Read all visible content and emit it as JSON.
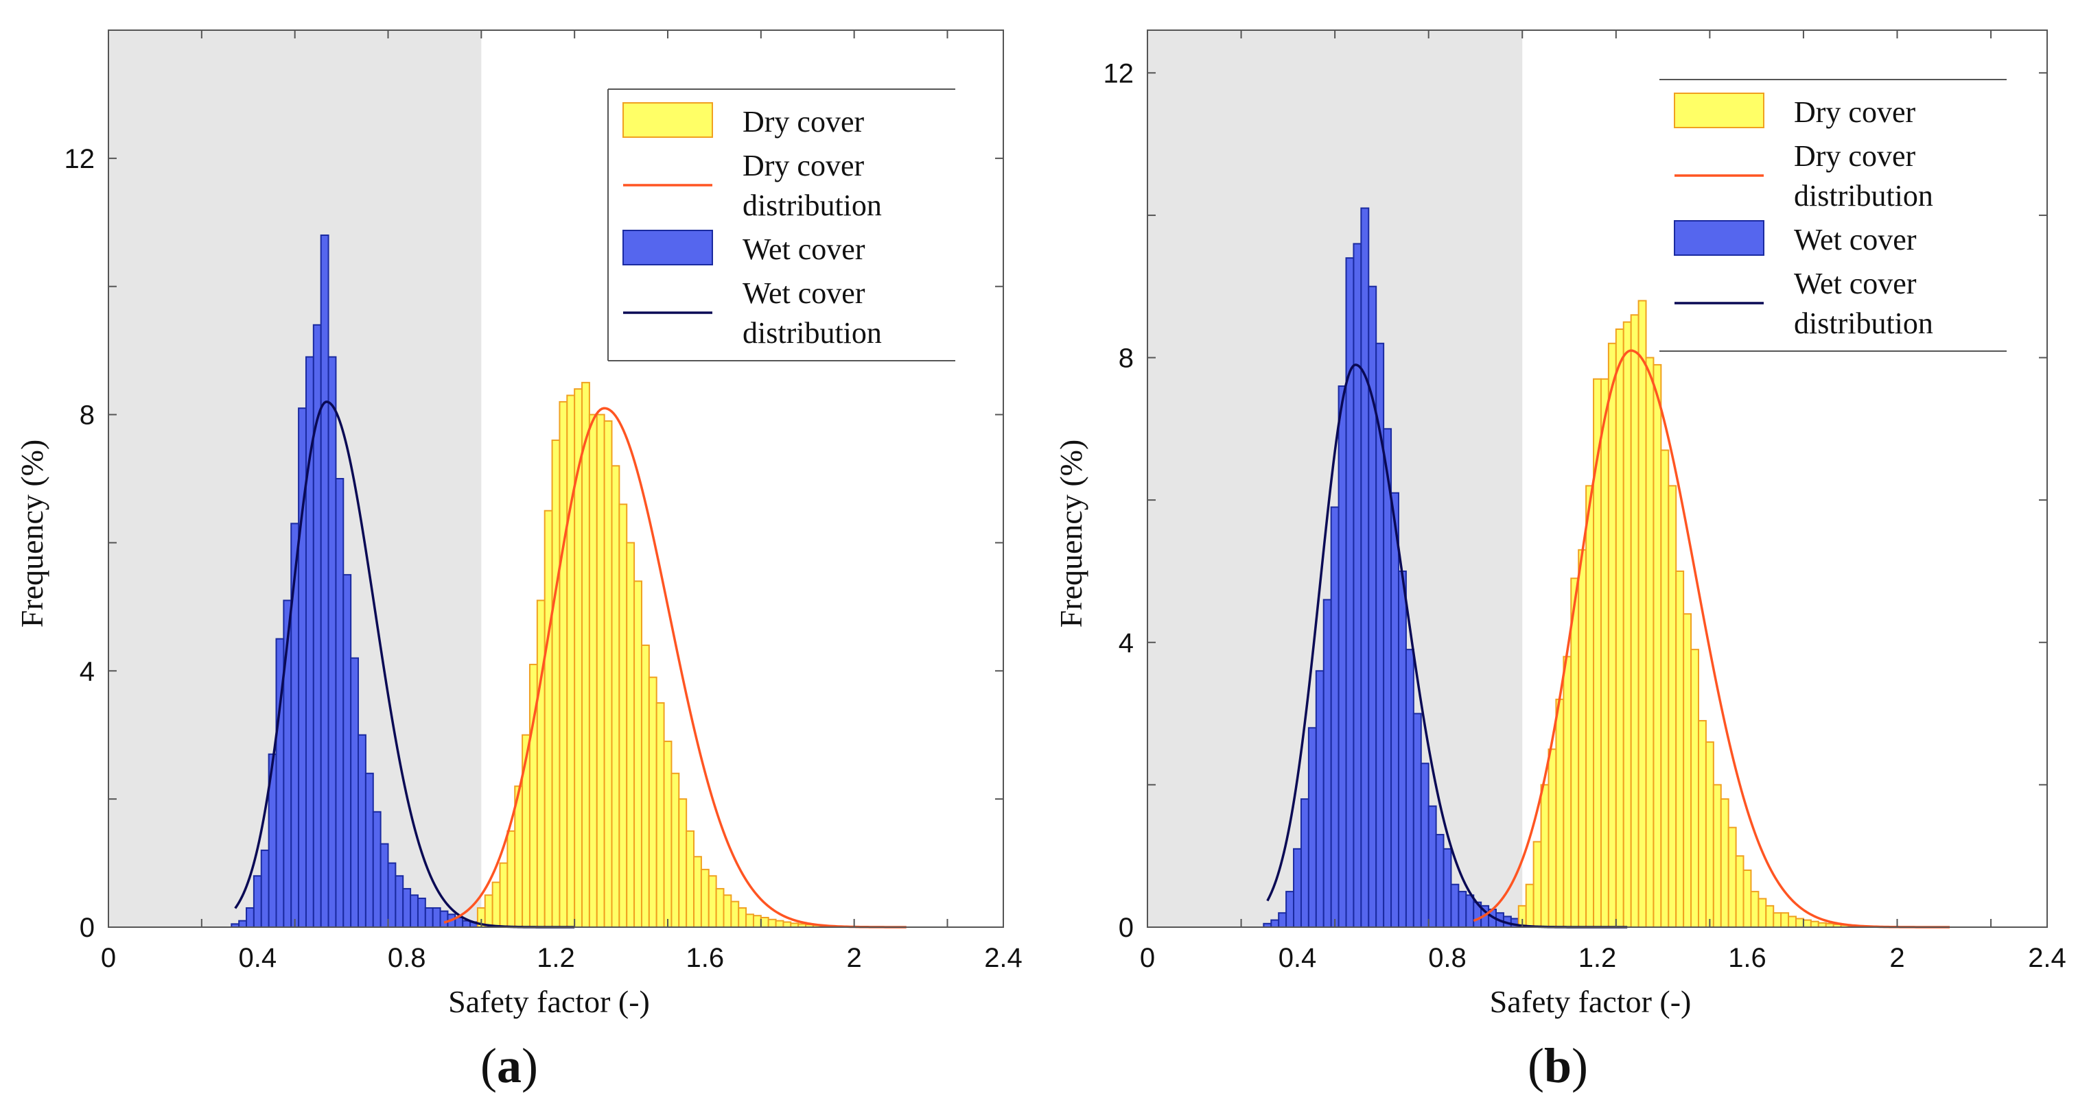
{
  "figure": {
    "background": "#ffffff"
  },
  "colors": {
    "dry_fill": "#ffff66",
    "dry_edge": "#f0a020",
    "dry_curve": "#ff5522",
    "wet_fill": "#5566ee",
    "wet_edge": "#1a2aa0",
    "wet_curve": "#0a0a55",
    "shade": "#e6e6e6"
  },
  "chart_data": [
    {
      "type": "bar",
      "panel": "(a)",
      "panel_parts": [
        "(",
        "a",
        ")"
      ],
      "xlabel": "Safety factor (-)",
      "ylabel": "Frequency (%)",
      "xlim": [
        0,
        2.4
      ],
      "ylim": [
        0,
        14
      ],
      "xticks": [
        0,
        0.4,
        0.8,
        1.2,
        1.6,
        2,
        2.4
      ],
      "xtick_labels": [
        "0",
        "0.4",
        "0.8",
        "1.2",
        "1.6",
        "2",
        "2.4"
      ],
      "yticks": [
        0,
        4,
        8,
        12
      ],
      "ytick_labels": [
        "0",
        "4",
        "8",
        "12"
      ],
      "minor_xticks": [
        0.25,
        0.5,
        0.75,
        1.0,
        1.25,
        1.5,
        1.75,
        2.0,
        2.25
      ],
      "minor_yticks": [
        0,
        2,
        4,
        6,
        8,
        10,
        12,
        14
      ],
      "shaded_region": [
        0,
        1.0
      ],
      "legend_position": "top-right",
      "legend": [
        {
          "kind": "patch",
          "series": "dry",
          "lines": [
            "Dry cover"
          ]
        },
        {
          "kind": "line",
          "series": "dry",
          "lines": [
            "Dry cover",
            "distribution"
          ]
        },
        {
          "kind": "patch",
          "series": "wet",
          "lines": [
            "Wet cover"
          ]
        },
        {
          "kind": "line",
          "series": "wet",
          "lines": [
            "Wet cover",
            "distribution"
          ]
        }
      ],
      "series": [
        {
          "name": "Wet cover",
          "key": "wet",
          "bin_width": 0.02,
          "bins_x_start": 0.33,
          "values": [
            0.05,
            0.1,
            0.3,
            0.8,
            1.2,
            2.7,
            4.5,
            5.1,
            6.3,
            8.1,
            8.9,
            9.4,
            10.8,
            8.9,
            7.0,
            5.5,
            4.2,
            3.0,
            2.4,
            1.8,
            1.3,
            1.0,
            0.8,
            0.6,
            0.5,
            0.45,
            0.3,
            0.3,
            0.25,
            0.2,
            0.15,
            0.1,
            0.08,
            0.07,
            0.06,
            0.05,
            0.04,
            0.03,
            0.03,
            0.02,
            0.02,
            0.02,
            0.01,
            0.01,
            0.01,
            0.01
          ]
        },
        {
          "name": "Dry cover",
          "key": "dry",
          "bin_width": 0.02,
          "bins_x_start": 0.99,
          "values": [
            0.3,
            0.5,
            0.7,
            1.0,
            1.5,
            2.2,
            3.0,
            4.1,
            5.1,
            6.5,
            7.6,
            8.2,
            8.3,
            8.4,
            8.5,
            8.0,
            8.0,
            7.9,
            7.2,
            6.6,
            6.0,
            5.4,
            4.4,
            3.9,
            3.5,
            2.9,
            2.4,
            2.0,
            1.5,
            1.1,
            0.9,
            0.8,
            0.6,
            0.5,
            0.4,
            0.3,
            0.2,
            0.18,
            0.15,
            0.12,
            0.1,
            0.08,
            0.06,
            0.05,
            0.04,
            0.03,
            0.02,
            0.02,
            0.01,
            0.01
          ]
        }
      ],
      "curves": [
        {
          "name": "Wet cover distribution",
          "key": "wet",
          "mean": 0.585,
          "peak": 8.2,
          "x_range": [
            0.34,
            1.25
          ],
          "skew": 0.12
        },
        {
          "name": "Dry cover distribution",
          "key": "dry",
          "mean": 1.33,
          "peak": 8.1,
          "x_range": [
            0.9,
            2.14
          ],
          "skew": 0.08
        }
      ]
    },
    {
      "type": "bar",
      "panel": "(b)",
      "panel_parts": [
        "(",
        "b",
        ")"
      ],
      "xlabel": "Safety factor (-)",
      "ylabel": "Frequency (%)",
      "xlim": [
        0,
        2.4
      ],
      "ylim": [
        0,
        12.6
      ],
      "xticks": [
        0,
        0.4,
        0.8,
        1.2,
        1.6,
        2,
        2.4
      ],
      "xtick_labels": [
        "0",
        "0.4",
        "0.8",
        "1.2",
        "1.6",
        "2",
        "2.4"
      ],
      "yticks": [
        0,
        4,
        8,
        12
      ],
      "ytick_labels": [
        "0",
        "4",
        "8",
        "12"
      ],
      "minor_xticks": [
        0.25,
        0.5,
        0.75,
        1.0,
        1.25,
        1.5,
        1.75,
        2.0,
        2.25
      ],
      "minor_yticks": [
        0,
        2,
        4,
        6,
        8,
        10,
        12
      ],
      "shaded_region": [
        0,
        1.0
      ],
      "legend_position": "top-right",
      "legend": [
        {
          "kind": "patch",
          "series": "dry",
          "lines": [
            "Dry cover"
          ]
        },
        {
          "kind": "line",
          "series": "dry",
          "lines": [
            "Dry cover",
            "distribution"
          ]
        },
        {
          "kind": "patch",
          "series": "wet",
          "lines": [
            "Wet cover"
          ]
        },
        {
          "kind": "line",
          "series": "wet",
          "lines": [
            "Wet cover",
            "distribution"
          ]
        }
      ],
      "series": [
        {
          "name": "Wet cover",
          "key": "wet",
          "bin_width": 0.02,
          "bins_x_start": 0.31,
          "values": [
            0.05,
            0.1,
            0.2,
            0.5,
            1.1,
            1.8,
            2.8,
            3.6,
            4.6,
            5.9,
            7.6,
            9.4,
            9.6,
            10.1,
            9.0,
            8.2,
            7.0,
            6.1,
            5.0,
            3.9,
            3.0,
            2.3,
            1.7,
            1.3,
            1.1,
            0.6,
            0.5,
            0.45,
            0.35,
            0.3,
            0.25,
            0.2,
            0.15,
            0.12,
            0.1,
            0.08,
            0.06,
            0.05,
            0.04,
            0.03,
            0.02,
            0.02,
            0.01,
            0.01,
            0.01,
            0.01,
            0.01,
            0.01
          ]
        },
        {
          "name": "Dry cover",
          "key": "dry",
          "bin_width": 0.02,
          "bins_x_start": 0.99,
          "values": [
            0.3,
            0.6,
            1.2,
            2.0,
            2.5,
            3.2,
            3.8,
            4.9,
            5.3,
            6.2,
            7.7,
            7.7,
            8.2,
            8.4,
            8.5,
            8.6,
            8.8,
            8.0,
            7.9,
            6.7,
            6.2,
            5.0,
            4.4,
            3.9,
            2.9,
            2.6,
            2.0,
            1.8,
            1.4,
            1.0,
            0.8,
            0.5,
            0.4,
            0.3,
            0.2,
            0.2,
            0.15,
            0.12,
            0.1,
            0.08,
            0.06,
            0.05,
            0.04,
            0.03,
            0.02,
            0.02,
            0.01,
            0.01
          ]
        }
      ],
      "curves": [
        {
          "name": "Wet cover distribution",
          "key": "wet",
          "mean": 0.555,
          "peak": 7.9,
          "x_range": [
            0.32,
            1.28
          ],
          "skew": 0.12
        },
        {
          "name": "Dry cover distribution",
          "key": "dry",
          "mean": 1.29,
          "peak": 8.1,
          "x_range": [
            0.87,
            2.14
          ],
          "skew": 0.08
        }
      ]
    }
  ]
}
